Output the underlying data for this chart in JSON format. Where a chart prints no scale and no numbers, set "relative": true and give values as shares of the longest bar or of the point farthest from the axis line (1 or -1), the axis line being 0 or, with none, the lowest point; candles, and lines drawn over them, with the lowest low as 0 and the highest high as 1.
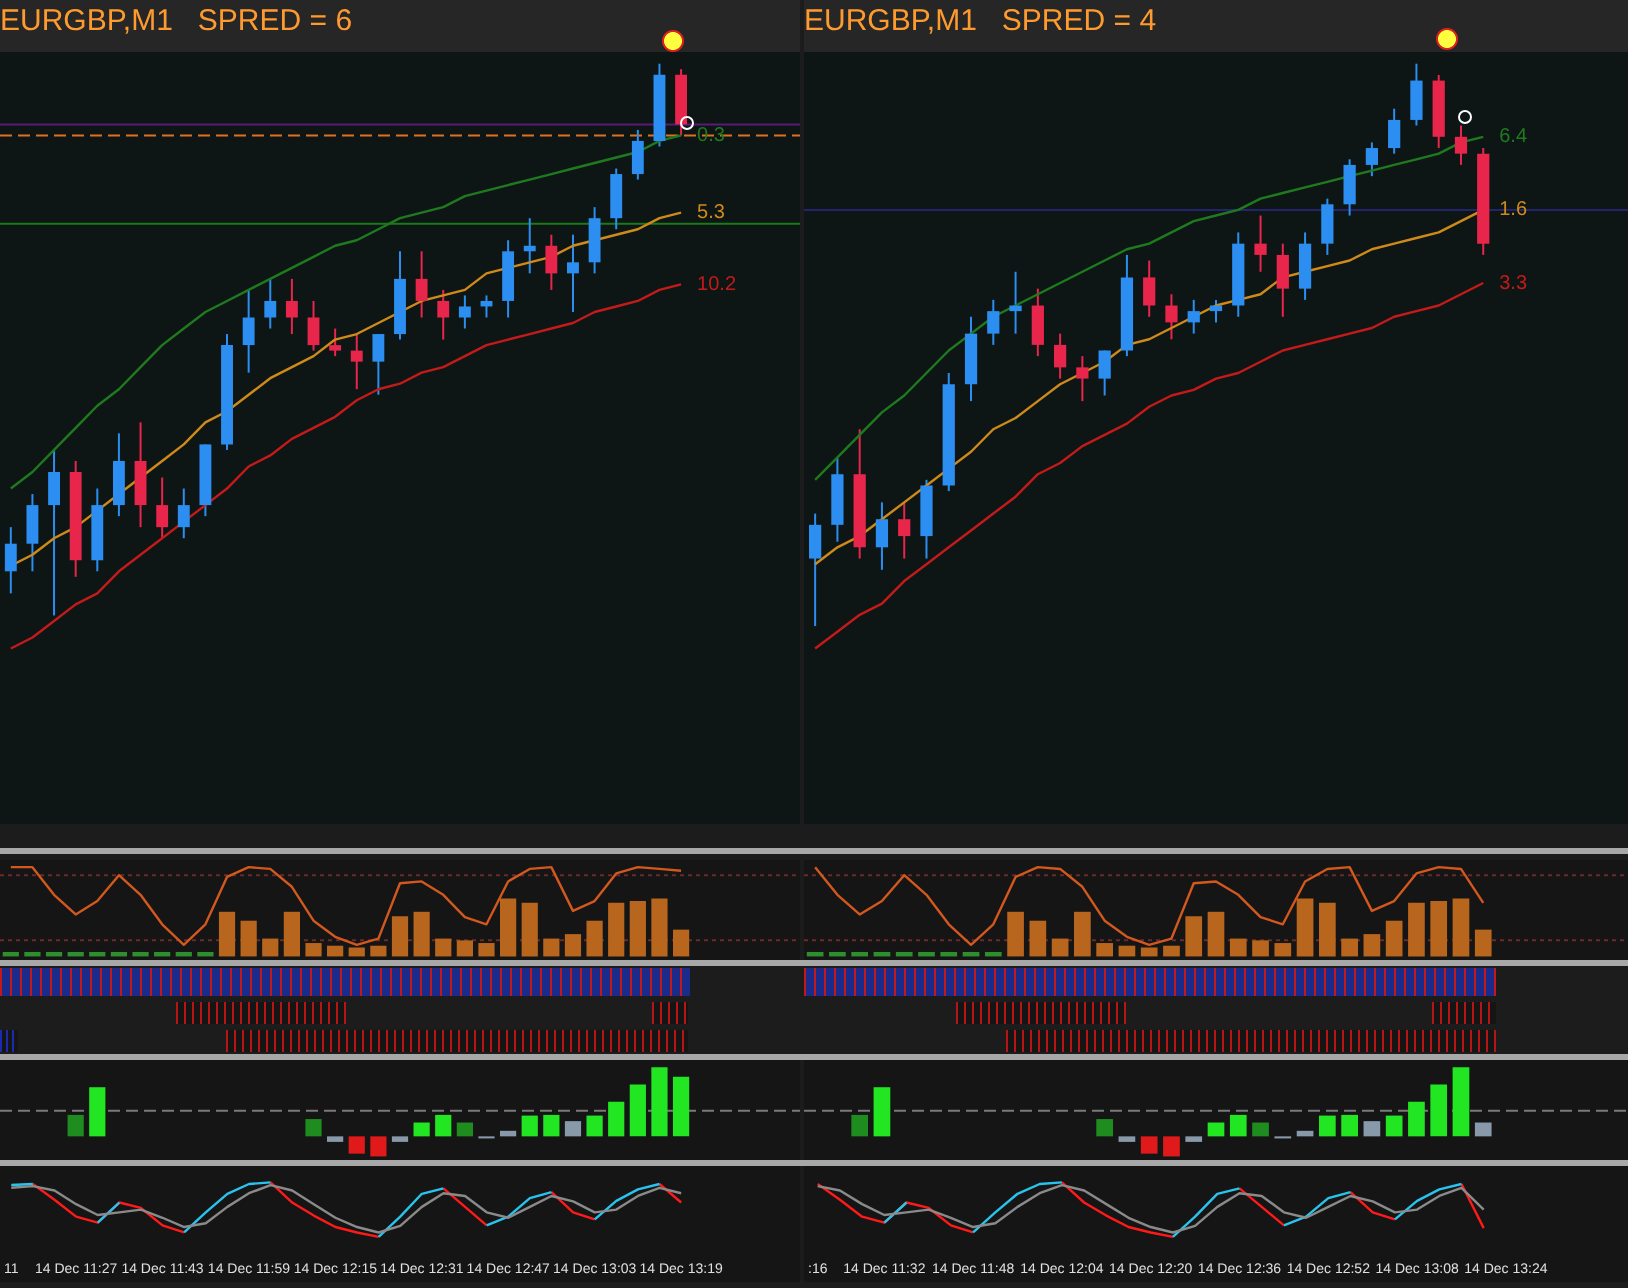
{
  "chart_data": [
    {
      "type": "candlestick",
      "title": "EURGBP,M1   SPRED = 6",
      "relative": true,
      "tick_labels": false,
      "categories": [
        null,
        null,
        null,
        null,
        null,
        null,
        null,
        null,
        null,
        null,
        null,
        null,
        null,
        null,
        null,
        null,
        null,
        null,
        null,
        null,
        null,
        null,
        null,
        null,
        null,
        null,
        null,
        null,
        null,
        null,
        null,
        null,
        null,
        null,
        null,
        null,
        null
      ],
      "ohlc": [
        [
          0.08,
          0.16,
          0.04,
          0.13
        ],
        [
          0.13,
          0.22,
          0.08,
          0.2
        ],
        [
          0.2,
          0.3,
          0,
          0.26
        ],
        [
          0.26,
          0.28,
          0.07,
          0.1
        ],
        [
          0.1,
          0.23,
          0.08,
          0.2
        ],
        [
          0.2,
          0.33,
          0.18,
          0.28
        ],
        [
          0.28,
          0.35,
          0.16,
          0.2
        ],
        [
          0.2,
          0.25,
          0.14,
          0.16
        ],
        [
          0.16,
          0.23,
          0.14,
          0.2
        ],
        [
          0.2,
          0.31,
          0.18,
          0.31
        ],
        [
          0.31,
          0.51,
          0.3,
          0.49
        ],
        [
          0.49,
          0.59,
          0.44,
          0.54
        ],
        [
          0.54,
          0.61,
          0.52,
          0.57
        ],
        [
          0.57,
          0.61,
          0.51,
          0.54
        ],
        [
          0.54,
          0.57,
          0.48,
          0.49
        ],
        [
          0.49,
          0.52,
          0.47,
          0.48
        ],
        [
          0.48,
          0.51,
          0.41,
          0.46
        ],
        [
          0.46,
          0.51,
          0.4,
          0.51
        ],
        [
          0.51,
          0.66,
          0.5,
          0.61
        ],
        [
          0.61,
          0.66,
          0.54,
          0.57
        ],
        [
          0.57,
          0.59,
          0.5,
          0.54
        ],
        [
          0.54,
          0.58,
          0.52,
          0.56
        ],
        [
          0.56,
          0.58,
          0.54,
          0.57
        ],
        [
          0.57,
          0.68,
          0.54,
          0.66
        ],
        [
          0.66,
          0.72,
          0.62,
          0.67
        ],
        [
          0.67,
          0.69,
          0.59,
          0.62
        ],
        [
          0.62,
          0.69,
          0.55,
          0.64
        ],
        [
          0.64,
          0.74,
          0.62,
          0.72
        ],
        [
          0.72,
          0.81,
          0.7,
          0.8
        ],
        [
          0.8,
          0.88,
          0.79,
          0.86
        ],
        [
          0.86,
          1,
          0.85,
          0.98
        ],
        [
          0.98,
          0.99,
          0.87,
          0.89
        ],
        null,
        null,
        null,
        null,
        null
      ],
      "colors": [
        "#2b8ef0",
        "#2b8ef0",
        "#2b8ef0",
        "#e8254a",
        "#2b8ef0",
        "#2b8ef0",
        "#e8254a",
        "#e8254a",
        "#2b8ef0",
        "#2b8ef0",
        "#2b8ef0",
        "#2b8ef0",
        "#2b8ef0",
        "#e8254a",
        "#e8254a",
        "#e8254a",
        "#e8254a",
        "#2b8ef0",
        "#2b8ef0",
        "#e8254a",
        "#e8254a",
        "#2b8ef0",
        "#2b8ef0",
        "#2b8ef0",
        "#2b8ef0",
        "#e8254a",
        "#2b8ef0",
        "#2b8ef0",
        "#2b8ef0",
        "#2b8ef0",
        "#2b8ef0",
        "#e8254a",
        null,
        null,
        null,
        null,
        null
      ],
      "series": [
        {
          "type": "line",
          "color": "#1f7a1f",
          "values": [
            0.23,
            0.26,
            0.3,
            0.34,
            0.38,
            0.41,
            0.45,
            0.49,
            0.52,
            0.55,
            0.57,
            0.59,
            0.61,
            0.63,
            0.65,
            0.67,
            0.68,
            0.7,
            0.72,
            0.73,
            0.74,
            0.76,
            0.77,
            0.78,
            0.79,
            0.8,
            0.81,
            0.82,
            0.83,
            0.84,
            0.86,
            0.87,
            null,
            null,
            null,
            null,
            null
          ]
        },
        {
          "type": "line",
          "color": "#d08a1a",
          "values": [
            0.09,
            0.11,
            0.14,
            0.16,
            0.19,
            0.22,
            0.25,
            0.28,
            0.31,
            0.35,
            0.37,
            0.4,
            0.43,
            0.45,
            0.47,
            0.5,
            0.51,
            0.53,
            0.55,
            0.57,
            0.58,
            0.59,
            0.62,
            0.63,
            0.64,
            0.65,
            0.67,
            0.68,
            0.69,
            0.7,
            0.72,
            0.73,
            null,
            null,
            null,
            null,
            null
          ]
        },
        {
          "type": "line",
          "color": "#c41a1a",
          "values": [
            -0.06,
            -0.04,
            -0.01,
            0.02,
            0.04,
            0.08,
            0.11,
            0.14,
            0.17,
            0.2,
            0.23,
            0.27,
            0.29,
            0.32,
            0.34,
            0.36,
            0.39,
            0.41,
            0.42,
            0.44,
            0.45,
            0.47,
            0.49,
            0.5,
            0.51,
            0.52,
            0.53,
            0.55,
            0.56,
            0.57,
            0.59,
            0.6,
            null,
            null,
            null,
            null,
            null
          ]
        }
      ],
      "ref_lines": [
        {
          "axis": "y",
          "value": 0.89,
          "color": "#5a1a7a",
          "line_style": "solid"
        },
        {
          "axis": "y",
          "value": 0.87,
          "color": "#e07020",
          "line_style": "dashed"
        },
        {
          "axis": "y",
          "value": 0.71,
          "color": "#1a7a1a",
          "line_style": "solid"
        }
      ],
      "annotations": [
        "0.3",
        "5.3",
        "10.2"
      ]
    },
    {
      "type": "candlestick",
      "title": "EURGBP,M1   SPRED = 4",
      "relative": true,
      "tick_labels": false,
      "categories": [
        null,
        null,
        null,
        null,
        null,
        null,
        null,
        null,
        null,
        null,
        null,
        null,
        null,
        null,
        null,
        null,
        null,
        null,
        null,
        null,
        null,
        null,
        null,
        null,
        null,
        null,
        null,
        null,
        null,
        null,
        null,
        null,
        null,
        null,
        null,
        null,
        null
      ],
      "ohlc": [
        [
          0.12,
          0.2,
          0,
          0.18
        ],
        [
          0.18,
          0.3,
          0.15,
          0.27
        ],
        [
          0.27,
          0.35,
          0.12,
          0.14
        ],
        [
          0.14,
          0.22,
          0.1,
          0.19
        ],
        [
          0.19,
          0.22,
          0.12,
          0.16
        ],
        [
          0.16,
          0.26,
          0.12,
          0.25
        ],
        [
          0.25,
          0.45,
          0.24,
          0.43
        ],
        [
          0.43,
          0.55,
          0.4,
          0.52
        ],
        [
          0.52,
          0.58,
          0.5,
          0.56
        ],
        [
          0.56,
          0.63,
          0.52,
          0.57
        ],
        [
          0.57,
          0.6,
          0.48,
          0.5
        ],
        [
          0.5,
          0.52,
          0.44,
          0.46
        ],
        [
          0.46,
          0.48,
          0.4,
          0.44
        ],
        [
          0.44,
          0.49,
          0.41,
          0.49
        ],
        [
          0.49,
          0.66,
          0.48,
          0.62
        ],
        [
          0.62,
          0.65,
          0.55,
          0.57
        ],
        [
          0.57,
          0.59,
          0.51,
          0.54
        ],
        [
          0.54,
          0.58,
          0.52,
          0.56
        ],
        [
          0.56,
          0.58,
          0.54,
          0.57
        ],
        [
          0.57,
          0.7,
          0.55,
          0.68
        ],
        [
          0.68,
          0.73,
          0.63,
          0.66
        ],
        [
          0.66,
          0.68,
          0.55,
          0.6
        ],
        [
          0.6,
          0.7,
          0.58,
          0.68
        ],
        [
          0.68,
          0.76,
          0.66,
          0.75
        ],
        [
          0.75,
          0.83,
          0.73,
          0.82
        ],
        [
          0.82,
          0.86,
          0.8,
          0.85
        ],
        [
          0.85,
          0.92,
          0.84,
          0.9
        ],
        [
          0.9,
          1,
          0.89,
          0.97
        ],
        [
          0.97,
          0.98,
          0.85,
          0.87
        ],
        [
          0.87,
          0.89,
          0.82,
          0.84
        ],
        [
          0.84,
          0.85,
          0.66,
          0.68
        ],
        null,
        null,
        null,
        null,
        null,
        null
      ],
      "colors": [
        "#2b8ef0",
        "#2b8ef0",
        "#e8254a",
        "#2b8ef0",
        "#e8254a",
        "#2b8ef0",
        "#2b8ef0",
        "#2b8ef0",
        "#2b8ef0",
        "#2b8ef0",
        "#e8254a",
        "#e8254a",
        "#e8254a",
        "#2b8ef0",
        "#2b8ef0",
        "#e8254a",
        "#e8254a",
        "#2b8ef0",
        "#2b8ef0",
        "#2b8ef0",
        "#e8254a",
        "#e8254a",
        "#2b8ef0",
        "#2b8ef0",
        "#2b8ef0",
        "#2b8ef0",
        "#2b8ef0",
        "#2b8ef0",
        "#e8254a",
        "#e8254a",
        "#e8254a",
        null,
        null,
        null,
        null,
        null,
        null
      ],
      "series": [
        {
          "type": "line",
          "color": "#1f7a1f",
          "values": [
            0.26,
            0.3,
            0.34,
            0.38,
            0.41,
            0.45,
            0.49,
            0.52,
            0.55,
            0.57,
            0.59,
            0.61,
            0.63,
            0.65,
            0.67,
            0.68,
            0.7,
            0.72,
            0.73,
            0.74,
            0.76,
            0.77,
            0.78,
            0.79,
            0.8,
            0.81,
            0.82,
            0.83,
            0.84,
            0.86,
            0.87,
            null,
            null,
            null,
            null,
            null,
            null
          ]
        },
        {
          "type": "line",
          "color": "#d08a1a",
          "values": [
            0.11,
            0.14,
            0.16,
            0.19,
            0.22,
            0.25,
            0.28,
            0.31,
            0.35,
            0.37,
            0.4,
            0.43,
            0.45,
            0.47,
            0.5,
            0.51,
            0.53,
            0.55,
            0.57,
            0.58,
            0.59,
            0.62,
            0.63,
            0.64,
            0.65,
            0.67,
            0.68,
            0.69,
            0.7,
            0.72,
            0.74,
            null,
            null,
            null,
            null,
            null,
            null
          ]
        },
        {
          "type": "line",
          "color": "#c41a1a",
          "values": [
            -0.04,
            -0.01,
            0.02,
            0.04,
            0.08,
            0.11,
            0.14,
            0.17,
            0.2,
            0.23,
            0.27,
            0.29,
            0.32,
            0.34,
            0.36,
            0.39,
            0.41,
            0.42,
            0.44,
            0.45,
            0.47,
            0.49,
            0.5,
            0.51,
            0.52,
            0.53,
            0.55,
            0.56,
            0.57,
            0.59,
            0.61,
            null,
            null,
            null,
            null,
            null,
            null
          ]
        }
      ],
      "ref_lines": [
        {
          "axis": "y",
          "value": 0.74,
          "color": "#24246e",
          "line_style": "solid"
        }
      ],
      "annotations": [
        "6.4",
        "1.6",
        "3.3"
      ]
    },
    {
      "type": "bar",
      "relative": true,
      "tick_labels": false,
      "categories": [
        null,
        null,
        null,
        null,
        null,
        null,
        null,
        null,
        null,
        null,
        null,
        null,
        null,
        null,
        null,
        null,
        null,
        null,
        null,
        null,
        null,
        null,
        null,
        null,
        null,
        null,
        null,
        null,
        null,
        null,
        null,
        null,
        null,
        null,
        null,
        null,
        null
      ],
      "series": [
        {
          "type": "bar",
          "colors": [
            "#2f8f2f",
            "#2f8f2f",
            "#2f8f2f",
            "#2f8f2f",
            "#2f8f2f",
            "#2f8f2f",
            "#2f8f2f",
            "#2f8f2f",
            "#2f8f2f",
            "#2f8f2f",
            "#b8651e",
            "#b8651e",
            "#b8651e",
            "#b8651e",
            "#b8651e",
            "#b8651e",
            "#b8651e",
            "#b8651e",
            "#b8651e",
            "#b8651e",
            "#b8651e",
            "#b8651e",
            "#b8651e",
            "#b8651e",
            "#b8651e",
            "#b8651e",
            "#b8651e",
            "#b8651e",
            "#b8651e",
            "#b8651e",
            "#b8651e",
            "#b8651e",
            null,
            null,
            null,
            null,
            null
          ],
          "values": [
            0.05,
            0.05,
            0.05,
            0.05,
            0.05,
            0.05,
            0.05,
            0.05,
            0.05,
            0.05,
            0.5,
            0.4,
            0.2,
            0.5,
            0.15,
            0.12,
            0.1,
            0.12,
            0.45,
            0.5,
            0.2,
            0.18,
            0.15,
            0.65,
            0.6,
            0.2,
            0.25,
            0.4,
            0.6,
            0.62,
            0.65,
            0.3,
            null,
            null,
            null,
            null,
            null
          ]
        },
        {
          "type": "line",
          "color": "#d2581e",
          "values": [
            1,
            1,
            0.69,
            0.47,
            0.62,
            0.91,
            0.69,
            0.36,
            0.13,
            0.36,
            0.89,
            1,
            0.98,
            0.78,
            0.4,
            0.22,
            0.13,
            0.2,
            0.82,
            0.84,
            0.69,
            0.44,
            0.36,
            0.84,
            0.98,
            1,
            0.51,
            0.62,
            0.93,
            1,
            0.98,
            0.96,
            null,
            null,
            null,
            null,
            null
          ]
        }
      ],
      "ref_lines": [
        {
          "axis": "y",
          "value": 0.91,
          "color": "#6a2a2a",
          "line_style": "dotted"
        },
        {
          "axis": "y",
          "value": 0.18,
          "color": "#6a2a2a",
          "line_style": "dotted"
        }
      ]
    },
    {
      "type": "bar",
      "relative": true,
      "tick_labels": false,
      "categories": [
        null,
        null,
        null,
        null,
        null,
        null,
        null,
        null,
        null,
        null,
        null,
        null,
        null,
        null,
        null,
        null,
        null,
        null,
        null,
        null,
        null,
        null,
        null,
        null,
        null,
        null,
        null,
        null,
        null,
        null,
        null,
        null,
        null,
        null,
        null,
        null,
        null
      ],
      "series": [
        {
          "type": "bar",
          "colors": [
            "#2f8f2f",
            "#2f8f2f",
            "#2f8f2f",
            "#2f8f2f",
            "#2f8f2f",
            "#2f8f2f",
            "#2f8f2f",
            "#2f8f2f",
            "#2f8f2f",
            "#b8651e",
            "#b8651e",
            "#b8651e",
            "#b8651e",
            "#b8651e",
            "#b8651e",
            "#b8651e",
            "#b8651e",
            "#b8651e",
            "#b8651e",
            "#b8651e",
            "#b8651e",
            "#b8651e",
            "#b8651e",
            "#b8651e",
            "#b8651e",
            "#b8651e",
            "#b8651e",
            "#b8651e",
            "#b8651e",
            "#b8651e",
            "#b8651e",
            null,
            null,
            null,
            null,
            null,
            null
          ],
          "values": [
            0.05,
            0.05,
            0.05,
            0.05,
            0.05,
            0.05,
            0.05,
            0.05,
            0.05,
            0.5,
            0.4,
            0.2,
            0.5,
            0.15,
            0.12,
            0.1,
            0.12,
            0.45,
            0.5,
            0.2,
            0.18,
            0.15,
            0.65,
            0.6,
            0.2,
            0.25,
            0.4,
            0.6,
            0.62,
            0.65,
            0.3,
            null,
            null,
            null,
            null,
            null,
            null
          ]
        },
        {
          "type": "line",
          "color": "#d2581e",
          "values": [
            1,
            0.69,
            0.47,
            0.62,
            0.91,
            0.69,
            0.36,
            0.13,
            0.36,
            0.89,
            1,
            0.98,
            0.78,
            0.4,
            0.22,
            0.13,
            0.2,
            0.82,
            0.84,
            0.69,
            0.44,
            0.36,
            0.84,
            0.98,
            1,
            0.51,
            0.62,
            0.93,
            1,
            0.98,
            0.6,
            null,
            null,
            null,
            null,
            null,
            null
          ]
        }
      ],
      "ref_lines": [
        {
          "axis": "y",
          "value": 0.91,
          "color": "#6a2a2a",
          "line_style": "dotted"
        },
        {
          "axis": "y",
          "value": 0.18,
          "color": "#6a2a2a",
          "line_style": "dotted"
        }
      ]
    },
    {
      "type": "bar",
      "relative": true,
      "tick_labels": false,
      "categories": [
        null,
        null,
        null,
        null,
        null,
        null,
        null,
        null,
        null,
        null,
        null,
        null,
        null,
        null,
        null,
        null,
        null,
        null,
        null,
        null,
        null,
        null,
        null,
        null,
        null,
        null,
        null,
        null,
        null,
        null,
        null,
        null,
        null,
        null,
        null,
        null,
        null
      ],
      "series": [
        {
          "type": "bar",
          "colors": [
            null,
            null,
            null,
            "#1e8c1e",
            "#22e622",
            null,
            null,
            null,
            null,
            null,
            null,
            null,
            null,
            null,
            "#1e8c1e",
            "#8899aa",
            "#e01a1a",
            "#e01a1a",
            "#8899aa",
            "#22e622",
            "#22e622",
            "#1e8c1e",
            "#8899aa",
            "#8899aa",
            "#22e622",
            "#22e622",
            "#8899aa",
            "#22e622",
            "#22e622",
            "#22e622",
            "#22e622",
            "#22e622",
            null,
            null,
            null,
            null,
            null
          ],
          "values": [
            null,
            null,
            null,
            0.31,
            0.71,
            null,
            null,
            null,
            null,
            null,
            null,
            null,
            null,
            null,
            0.25,
            -0.08,
            -0.25,
            -0.29,
            -0.08,
            0.2,
            0.31,
            0.2,
            -0.03,
            0.08,
            0.3,
            0.31,
            0.22,
            0.3,
            0.5,
            0.75,
            1,
            0.86,
            null,
            null,
            null,
            null,
            null
          ]
        }
      ],
      "ref_lines": [
        {
          "axis": "y",
          "value": 0.37,
          "color": "#7a7a7a",
          "line_style": "dashed"
        }
      ]
    },
    {
      "type": "bar",
      "relative": true,
      "tick_labels": false,
      "categories": [
        null,
        null,
        null,
        null,
        null,
        null,
        null,
        null,
        null,
        null,
        null,
        null,
        null,
        null,
        null,
        null,
        null,
        null,
        null,
        null,
        null,
        null,
        null,
        null,
        null,
        null,
        null,
        null,
        null,
        null,
        null,
        null,
        null,
        null,
        null,
        null,
        null
      ],
      "series": [
        {
          "type": "bar",
          "colors": [
            null,
            null,
            "#1e8c1e",
            "#22e622",
            null,
            null,
            null,
            null,
            null,
            null,
            null,
            null,
            null,
            "#1e8c1e",
            "#8899aa",
            "#e01a1a",
            "#e01a1a",
            "#8899aa",
            "#22e622",
            "#22e622",
            "#1e8c1e",
            "#8899aa",
            "#8899aa",
            "#22e622",
            "#22e622",
            "#8899aa",
            "#22e622",
            "#22e622",
            "#22e622",
            "#22e622",
            "#8899aa",
            null,
            null,
            null,
            null,
            null,
            null
          ],
          "values": [
            null,
            null,
            0.31,
            0.71,
            null,
            null,
            null,
            null,
            null,
            null,
            null,
            null,
            null,
            0.25,
            -0.08,
            -0.25,
            -0.29,
            -0.08,
            0.2,
            0.31,
            0.2,
            -0.03,
            0.08,
            0.3,
            0.31,
            0.22,
            0.3,
            0.5,
            0.75,
            1,
            0.2,
            null,
            null,
            null,
            null,
            null,
            null
          ]
        }
      ],
      "ref_lines": [
        {
          "axis": "y",
          "value": 0.37,
          "color": "#7a7a7a",
          "line_style": "dashed"
        }
      ]
    },
    {
      "type": "line",
      "relative": true,
      "tick_labels": "x",
      "categories": [
        "11",
        null,
        null,
        "14 Dec 11:27",
        null,
        null,
        null,
        "14 Dec 11:43",
        null,
        null,
        null,
        "14 Dec 11:59",
        null,
        null,
        null,
        "14 Dec 12:15",
        null,
        null,
        null,
        "14 Dec 12:31",
        null,
        null,
        null,
        "14 Dec 12:47",
        null,
        null,
        null,
        "14 Dec 13:03",
        null,
        null,
        null,
        "14 Dec 13:19",
        null,
        null,
        null,
        null,
        null
      ],
      "series": [
        {
          "color": "#8a8a8a",
          "values": [
            0.9,
            0.93,
            0.85,
            0.6,
            0.4,
            0.45,
            0.5,
            0.35,
            0.18,
            0.25,
            0.55,
            0.8,
            0.95,
            0.85,
            0.6,
            0.35,
            0.18,
            0.08,
            0.2,
            0.55,
            0.8,
            0.75,
            0.45,
            0.35,
            0.55,
            0.75,
            0.65,
            0.45,
            0.5,
            0.75,
            0.9,
            0.8,
            null,
            null,
            null,
            null,
            null
          ]
        },
        {
          "color": "#29c4ee",
          "values": [
            0.95,
            0.97,
            null,
            null,
            0.26,
            0.63,
            null,
            null,
            0.08,
            0.45,
            0.79,
            0.97,
            1,
            null,
            null,
            null,
            null,
            0,
            0.37,
            0.79,
            0.89,
            null,
            0.21,
            0.37,
            0.71,
            0.82,
            null,
            0.32,
            0.66,
            0.87,
            0.97,
            null,
            null,
            null,
            null,
            null,
            null
          ]
        },
        {
          "color": "#ff1a1a",
          "values": [
            null,
            0.97,
            0.68,
            0.37,
            0.26,
            0.63,
            0.53,
            0.21,
            0.08,
            null,
            null,
            null,
            1,
            0.63,
            0.39,
            0.18,
            0.08,
            0,
            null,
            null,
            0.89,
            0.55,
            0.21,
            null,
            null,
            0.82,
            0.45,
            0.32,
            null,
            null,
            0.97,
            0.63,
            null,
            null,
            null,
            null,
            null
          ]
        }
      ]
    },
    {
      "type": "line",
      "relative": true,
      "tick_labels": "x",
      "categories": [
        ":16",
        null,
        null,
        "14 Dec 11:32",
        null,
        null,
        null,
        "14 Dec 11:48",
        null,
        null,
        null,
        "14 Dec 12:04",
        null,
        null,
        null,
        "14 Dec 12:20",
        null,
        null,
        null,
        "14 Dec 12:36",
        null,
        null,
        null,
        "14 Dec 12:52",
        null,
        null,
        null,
        "14 Dec 13:08",
        null,
        null,
        null,
        "14 Dec 13:24",
        null,
        null,
        null,
        null,
        null
      ],
      "series": [
        {
          "color": "#8a8a8a",
          "values": [
            0.93,
            0.85,
            0.6,
            0.4,
            0.45,
            0.5,
            0.35,
            0.18,
            0.25,
            0.55,
            0.8,
            0.95,
            0.85,
            0.6,
            0.35,
            0.18,
            0.08,
            0.2,
            0.55,
            0.8,
            0.75,
            0.45,
            0.35,
            0.55,
            0.75,
            0.65,
            0.45,
            0.5,
            0.75,
            0.9,
            0.5,
            null,
            null,
            null,
            null,
            null,
            null
          ]
        },
        {
          "color": "#29c4ee",
          "values": [
            null,
            null,
            null,
            0.26,
            0.63,
            null,
            null,
            0.08,
            0.45,
            0.79,
            0.97,
            1,
            null,
            null,
            null,
            null,
            0,
            0.37,
            0.79,
            0.89,
            null,
            0.21,
            0.37,
            0.71,
            0.82,
            null,
            0.32,
            0.66,
            0.87,
            0.97,
            null,
            null,
            null,
            null,
            null,
            null,
            null
          ]
        },
        {
          "color": "#ff1a1a",
          "values": [
            0.97,
            0.68,
            0.37,
            0.26,
            0.63,
            0.53,
            0.21,
            0.08,
            null,
            null,
            null,
            1,
            0.63,
            0.39,
            0.18,
            0.08,
            0,
            null,
            null,
            0.89,
            0.55,
            0.21,
            null,
            null,
            0.82,
            0.45,
            0.32,
            null,
            null,
            0.97,
            0.16,
            null,
            null,
            null,
            null,
            null,
            null
          ]
        }
      ]
    }
  ]
}
